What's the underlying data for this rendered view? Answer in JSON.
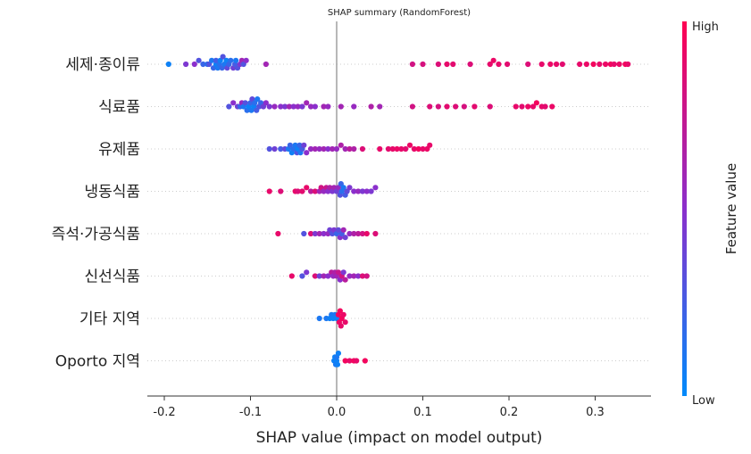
{
  "chart_data": {
    "type": "scatter",
    "subtype": "shap-beeswarm",
    "title": "SHAP summary (RandomForest)",
    "xlabel": "SHAP value (impact on model output)",
    "xlim": [
      -0.22,
      0.37
    ],
    "xticks": [
      -0.2,
      -0.1,
      0.0,
      0.1,
      0.2,
      0.3
    ],
    "xtick_labels": [
      "-0.2",
      "-0.1",
      "0.0",
      "0.1",
      "0.2",
      "0.3"
    ],
    "colorbar": {
      "title": "Feature value",
      "high_label": "High",
      "low_label": "Low",
      "low_color": "#008afb",
      "mid_color": "#8b2fcc",
      "high_color": "#ff0052"
    },
    "features": [
      {
        "name": "세제·종이류",
        "points": [
          {
            "x": -0.195,
            "v": 0.05
          },
          {
            "x": -0.175,
            "v": 0.45
          },
          {
            "x": -0.165,
            "v": 0.5
          },
          {
            "x": -0.16,
            "v": 0.3
          },
          {
            "x": -0.155,
            "v": 0.2
          },
          {
            "x": -0.15,
            "v": 0.15
          },
          {
            "x": -0.148,
            "v": 0.3
          },
          {
            "x": -0.145,
            "v": 0.1
          },
          {
            "x": -0.143,
            "v": 0.2
          },
          {
            "x": -0.14,
            "v": 0.05
          },
          {
            "x": -0.14,
            "v": 0.25
          },
          {
            "x": -0.138,
            "v": 0.1
          },
          {
            "x": -0.136,
            "v": 0.15
          },
          {
            "x": -0.135,
            "v": 0.05
          },
          {
            "x": -0.133,
            "v": 0.2
          },
          {
            "x": -0.132,
            "v": 0.3
          },
          {
            "x": -0.13,
            "v": 0.1
          },
          {
            "x": -0.128,
            "v": 0.05
          },
          {
            "x": -0.127,
            "v": 0.35
          },
          {
            "x": -0.125,
            "v": 0.2
          },
          {
            "x": -0.123,
            "v": 0.15
          },
          {
            "x": -0.12,
            "v": 0.4
          },
          {
            "x": -0.118,
            "v": 0.25
          },
          {
            "x": -0.117,
            "v": 0.1
          },
          {
            "x": -0.115,
            "v": 0.3
          },
          {
            "x": -0.112,
            "v": 0.45
          },
          {
            "x": -0.11,
            "v": 0.6
          },
          {
            "x": -0.108,
            "v": 0.3
          },
          {
            "x": -0.105,
            "v": 0.5
          },
          {
            "x": -0.082,
            "v": 0.6
          },
          {
            "x": 0.088,
            "v": 0.8
          },
          {
            "x": 0.1,
            "v": 0.82
          },
          {
            "x": 0.118,
            "v": 0.85
          },
          {
            "x": 0.128,
            "v": 0.9
          },
          {
            "x": 0.135,
            "v": 0.88
          },
          {
            "x": 0.155,
            "v": 0.85
          },
          {
            "x": 0.178,
            "v": 0.9
          },
          {
            "x": 0.182,
            "v": 0.92
          },
          {
            "x": 0.188,
            "v": 0.9
          },
          {
            "x": 0.198,
            "v": 0.88
          },
          {
            "x": 0.222,
            "v": 0.85
          },
          {
            "x": 0.238,
            "v": 0.9
          },
          {
            "x": 0.248,
            "v": 0.92
          },
          {
            "x": 0.255,
            "v": 0.9
          },
          {
            "x": 0.262,
            "v": 0.88
          },
          {
            "x": 0.282,
            "v": 0.9
          },
          {
            "x": 0.29,
            "v": 0.92
          },
          {
            "x": 0.298,
            "v": 0.95
          },
          {
            "x": 0.305,
            "v": 0.9
          },
          {
            "x": 0.312,
            "v": 0.92
          },
          {
            "x": 0.318,
            "v": 0.95
          },
          {
            "x": 0.322,
            "v": 0.9
          },
          {
            "x": 0.328,
            "v": 0.92
          },
          {
            "x": 0.335,
            "v": 0.95
          },
          {
            "x": 0.338,
            "v": 0.9
          }
        ]
      },
      {
        "name": "식료품",
        "points": [
          {
            "x": -0.125,
            "v": 0.3
          },
          {
            "x": -0.12,
            "v": 0.5
          },
          {
            "x": -0.115,
            "v": 0.4
          },
          {
            "x": -0.112,
            "v": 0.2
          },
          {
            "x": -0.11,
            "v": 0.55
          },
          {
            "x": -0.108,
            "v": 0.1
          },
          {
            "x": -0.106,
            "v": 0.3
          },
          {
            "x": -0.104,
            "v": 0.15
          },
          {
            "x": -0.102,
            "v": 0.05
          },
          {
            "x": -0.1,
            "v": 0.2
          },
          {
            "x": -0.099,
            "v": 0.1
          },
          {
            "x": -0.098,
            "v": 0.35
          },
          {
            "x": -0.096,
            "v": 0.05
          },
          {
            "x": -0.095,
            "v": 0.15
          },
          {
            "x": -0.093,
            "v": 0.25
          },
          {
            "x": -0.092,
            "v": 0.1
          },
          {
            "x": -0.09,
            "v": 0.3
          },
          {
            "x": -0.088,
            "v": 0.2
          },
          {
            "x": -0.085,
            "v": 0.4
          },
          {
            "x": -0.082,
            "v": 0.5
          },
          {
            "x": -0.078,
            "v": 0.45
          },
          {
            "x": -0.072,
            "v": 0.55
          },
          {
            "x": -0.065,
            "v": 0.5
          },
          {
            "x": -0.06,
            "v": 0.45
          },
          {
            "x": -0.055,
            "v": 0.6
          },
          {
            "x": -0.05,
            "v": 0.5
          },
          {
            "x": -0.045,
            "v": 0.55
          },
          {
            "x": -0.04,
            "v": 0.45
          },
          {
            "x": -0.035,
            "v": 0.6
          },
          {
            "x": -0.03,
            "v": 0.55
          },
          {
            "x": -0.025,
            "v": 0.5
          },
          {
            "x": -0.015,
            "v": 0.6
          },
          {
            "x": -0.01,
            "v": 0.55
          },
          {
            "x": 0.005,
            "v": 0.6
          },
          {
            "x": 0.02,
            "v": 0.55
          },
          {
            "x": 0.04,
            "v": 0.65
          },
          {
            "x": 0.05,
            "v": 0.6
          },
          {
            "x": 0.088,
            "v": 0.8
          },
          {
            "x": 0.108,
            "v": 0.85
          },
          {
            "x": 0.118,
            "v": 0.82
          },
          {
            "x": 0.128,
            "v": 0.88
          },
          {
            "x": 0.138,
            "v": 0.85
          },
          {
            "x": 0.148,
            "v": 0.82
          },
          {
            "x": 0.16,
            "v": 0.88
          },
          {
            "x": 0.178,
            "v": 0.85
          },
          {
            "x": 0.208,
            "v": 0.9
          },
          {
            "x": 0.215,
            "v": 0.88
          },
          {
            "x": 0.222,
            "v": 0.92
          },
          {
            "x": 0.228,
            "v": 0.9
          },
          {
            "x": 0.232,
            "v": 0.95
          },
          {
            "x": 0.238,
            "v": 0.9
          },
          {
            "x": 0.242,
            "v": 0.88
          },
          {
            "x": 0.25,
            "v": 0.92
          }
        ]
      },
      {
        "name": "유제품",
        "points": [
          {
            "x": -0.078,
            "v": 0.3
          },
          {
            "x": -0.072,
            "v": 0.4
          },
          {
            "x": -0.065,
            "v": 0.25
          },
          {
            "x": -0.06,
            "v": 0.35
          },
          {
            "x": -0.056,
            "v": 0.1
          },
          {
            "x": -0.054,
            "v": 0.2
          },
          {
            "x": -0.052,
            "v": 0.05
          },
          {
            "x": -0.05,
            "v": 0.15
          },
          {
            "x": -0.048,
            "v": 0.1
          },
          {
            "x": -0.046,
            "v": 0.3
          },
          {
            "x": -0.045,
            "v": 0.05
          },
          {
            "x": -0.043,
            "v": 0.2
          },
          {
            "x": -0.042,
            "v": 0.1
          },
          {
            "x": -0.04,
            "v": 0.25
          },
          {
            "x": -0.038,
            "v": 0.4
          },
          {
            "x": -0.035,
            "v": 0.5
          },
          {
            "x": -0.03,
            "v": 0.55
          },
          {
            "x": -0.025,
            "v": 0.6
          },
          {
            "x": -0.02,
            "v": 0.55
          },
          {
            "x": -0.015,
            "v": 0.6
          },
          {
            "x": -0.01,
            "v": 0.5
          },
          {
            "x": -0.005,
            "v": 0.6
          },
          {
            "x": 0.0,
            "v": 0.55
          },
          {
            "x": 0.005,
            "v": 0.65
          },
          {
            "x": 0.01,
            "v": 0.6
          },
          {
            "x": 0.015,
            "v": 0.7
          },
          {
            "x": 0.02,
            "v": 0.65
          },
          {
            "x": 0.03,
            "v": 0.85
          },
          {
            "x": 0.05,
            "v": 0.9
          },
          {
            "x": 0.06,
            "v": 0.88
          },
          {
            "x": 0.065,
            "v": 0.9
          },
          {
            "x": 0.07,
            "v": 0.92
          },
          {
            "x": 0.075,
            "v": 0.9
          },
          {
            "x": 0.08,
            "v": 0.88
          },
          {
            "x": 0.085,
            "v": 0.92
          },
          {
            "x": 0.09,
            "v": 0.9
          },
          {
            "x": 0.095,
            "v": 0.95
          },
          {
            "x": 0.1,
            "v": 0.9
          },
          {
            "x": 0.105,
            "v": 0.92
          },
          {
            "x": 0.108,
            "v": 0.9
          }
        ]
      },
      {
        "name": "냉동식품",
        "points": [
          {
            "x": -0.078,
            "v": 0.9
          },
          {
            "x": -0.065,
            "v": 0.85
          },
          {
            "x": -0.048,
            "v": 0.9
          },
          {
            "x": -0.045,
            "v": 0.85
          },
          {
            "x": -0.04,
            "v": 0.88
          },
          {
            "x": -0.035,
            "v": 0.9
          },
          {
            "x": -0.03,
            "v": 0.7
          },
          {
            "x": -0.025,
            "v": 0.85
          },
          {
            "x": -0.02,
            "v": 0.6
          },
          {
            "x": -0.018,
            "v": 0.8
          },
          {
            "x": -0.015,
            "v": 0.55
          },
          {
            "x": -0.012,
            "v": 0.75
          },
          {
            "x": -0.01,
            "v": 0.5
          },
          {
            "x": -0.008,
            "v": 0.65
          },
          {
            "x": -0.005,
            "v": 0.45
          },
          {
            "x": -0.003,
            "v": 0.6
          },
          {
            "x": 0.0,
            "v": 0.4
          },
          {
            "x": 0.002,
            "v": 0.55
          },
          {
            "x": 0.004,
            "v": 0.3
          },
          {
            "x": 0.005,
            "v": 0.2
          },
          {
            "x": 0.006,
            "v": 0.15
          },
          {
            "x": 0.008,
            "v": 0.1
          },
          {
            "x": 0.01,
            "v": 0.25
          },
          {
            "x": 0.012,
            "v": 0.35
          },
          {
            "x": 0.015,
            "v": 0.45
          },
          {
            "x": 0.02,
            "v": 0.5
          },
          {
            "x": 0.025,
            "v": 0.55
          },
          {
            "x": 0.03,
            "v": 0.45
          },
          {
            "x": 0.035,
            "v": 0.5
          },
          {
            "x": 0.04,
            "v": 0.45
          },
          {
            "x": 0.045,
            "v": 0.5
          }
        ]
      },
      {
        "name": "즉석·가공식품",
        "points": [
          {
            "x": -0.068,
            "v": 0.9
          },
          {
            "x": -0.038,
            "v": 0.3
          },
          {
            "x": -0.03,
            "v": 0.85
          },
          {
            "x": -0.025,
            "v": 0.45
          },
          {
            "x": -0.02,
            "v": 0.6
          },
          {
            "x": -0.015,
            "v": 0.5
          },
          {
            "x": -0.01,
            "v": 0.55
          },
          {
            "x": -0.008,
            "v": 0.4
          },
          {
            "x": -0.005,
            "v": 0.3
          },
          {
            "x": -0.003,
            "v": 0.45
          },
          {
            "x": 0.0,
            "v": 0.2
          },
          {
            "x": 0.002,
            "v": 0.35
          },
          {
            "x": 0.004,
            "v": 0.5
          },
          {
            "x": 0.006,
            "v": 0.25
          },
          {
            "x": 0.008,
            "v": 0.6
          },
          {
            "x": 0.01,
            "v": 0.4
          },
          {
            "x": 0.015,
            "v": 0.55
          },
          {
            "x": 0.02,
            "v": 0.65
          },
          {
            "x": 0.025,
            "v": 0.7
          },
          {
            "x": 0.03,
            "v": 0.8
          },
          {
            "x": 0.035,
            "v": 0.9
          },
          {
            "x": 0.045,
            "v": 0.85
          }
        ]
      },
      {
        "name": "신선식품",
        "points": [
          {
            "x": -0.052,
            "v": 0.9
          },
          {
            "x": -0.04,
            "v": 0.3
          },
          {
            "x": -0.035,
            "v": 0.45
          },
          {
            "x": -0.025,
            "v": 0.85
          },
          {
            "x": -0.02,
            "v": 0.4
          },
          {
            "x": -0.015,
            "v": 0.6
          },
          {
            "x": -0.01,
            "v": 0.5
          },
          {
            "x": -0.006,
            "v": 0.7
          },
          {
            "x": -0.004,
            "v": 0.55
          },
          {
            "x": -0.002,
            "v": 0.65
          },
          {
            "x": 0.0,
            "v": 0.6
          },
          {
            "x": 0.002,
            "v": 0.75
          },
          {
            "x": 0.004,
            "v": 0.5
          },
          {
            "x": 0.006,
            "v": 0.8
          },
          {
            "x": 0.008,
            "v": 0.45
          },
          {
            "x": 0.01,
            "v": 0.7
          },
          {
            "x": 0.015,
            "v": 0.55
          },
          {
            "x": 0.02,
            "v": 0.6
          },
          {
            "x": 0.025,
            "v": 0.5
          },
          {
            "x": 0.03,
            "v": 0.85
          },
          {
            "x": 0.035,
            "v": 0.8
          }
        ]
      },
      {
        "name": "기타 지역",
        "points": [
          {
            "x": -0.02,
            "v": 0.1
          },
          {
            "x": -0.012,
            "v": 0.1
          },
          {
            "x": -0.008,
            "v": 0.05
          },
          {
            "x": -0.006,
            "v": 0.1
          },
          {
            "x": -0.004,
            "v": 0.05
          },
          {
            "x": -0.002,
            "v": 0.1
          },
          {
            "x": 0.0,
            "v": 0.05
          },
          {
            "x": 0.002,
            "v": 0.95
          },
          {
            "x": 0.003,
            "v": 0.92
          },
          {
            "x": 0.004,
            "v": 0.95
          },
          {
            "x": 0.005,
            "v": 0.9
          },
          {
            "x": 0.006,
            "v": 0.95
          },
          {
            "x": 0.008,
            "v": 0.92
          },
          {
            "x": 0.01,
            "v": 0.9
          }
        ]
      },
      {
        "name": "Oporto 지역",
        "points": [
          {
            "x": -0.003,
            "v": 0.05
          },
          {
            "x": -0.002,
            "v": 0.05
          },
          {
            "x": -0.001,
            "v": 0.1
          },
          {
            "x": 0.0,
            "v": 0.05
          },
          {
            "x": 0.0,
            "v": 0.1
          },
          {
            "x": 0.001,
            "v": 0.05
          },
          {
            "x": 0.002,
            "v": 0.05
          },
          {
            "x": 0.01,
            "v": 0.95
          },
          {
            "x": 0.015,
            "v": 0.9
          },
          {
            "x": 0.02,
            "v": 0.95
          },
          {
            "x": 0.023,
            "v": 0.9
          },
          {
            "x": 0.033,
            "v": 0.95
          }
        ]
      }
    ]
  }
}
